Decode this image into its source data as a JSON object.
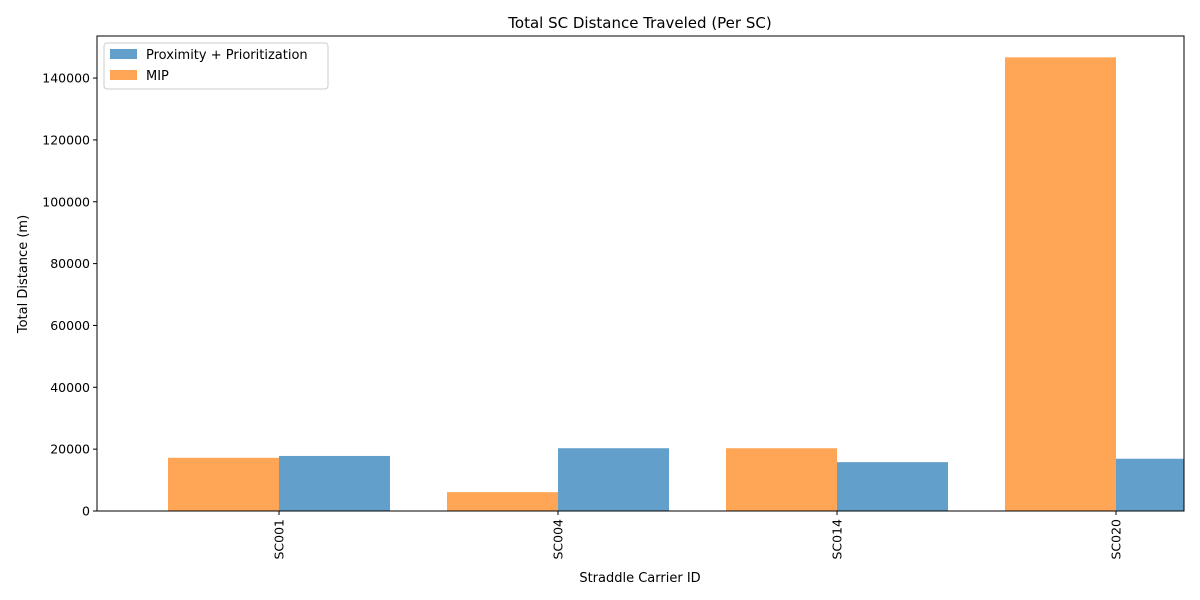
{
  "chart_data": {
    "type": "bar",
    "title": "Total SC Distance Traveled (Per SC)",
    "xlabel": "Straddle Carrier ID",
    "ylabel": "Total Distance (m)",
    "categories": [
      "SC001",
      "SC004",
      "SC014",
      "SC020"
    ],
    "series": [
      {
        "name": "MIP",
        "color": "#ffa556",
        "values": [
          17200,
          6100,
          20300,
          146700
        ]
      },
      {
        "name": "Proximity + Prioritization",
        "color": "#62a0cb",
        "values": [
          17800,
          20300,
          15800,
          16900
        ]
      }
    ],
    "legend_order": [
      "Proximity + Prioritization",
      "MIP"
    ],
    "legend_position": "top-left",
    "ylim": [
      0,
      153600
    ],
    "yticks": [
      0,
      20000,
      40000,
      60000,
      80000,
      100000,
      120000,
      140000
    ],
    "grid": false
  }
}
